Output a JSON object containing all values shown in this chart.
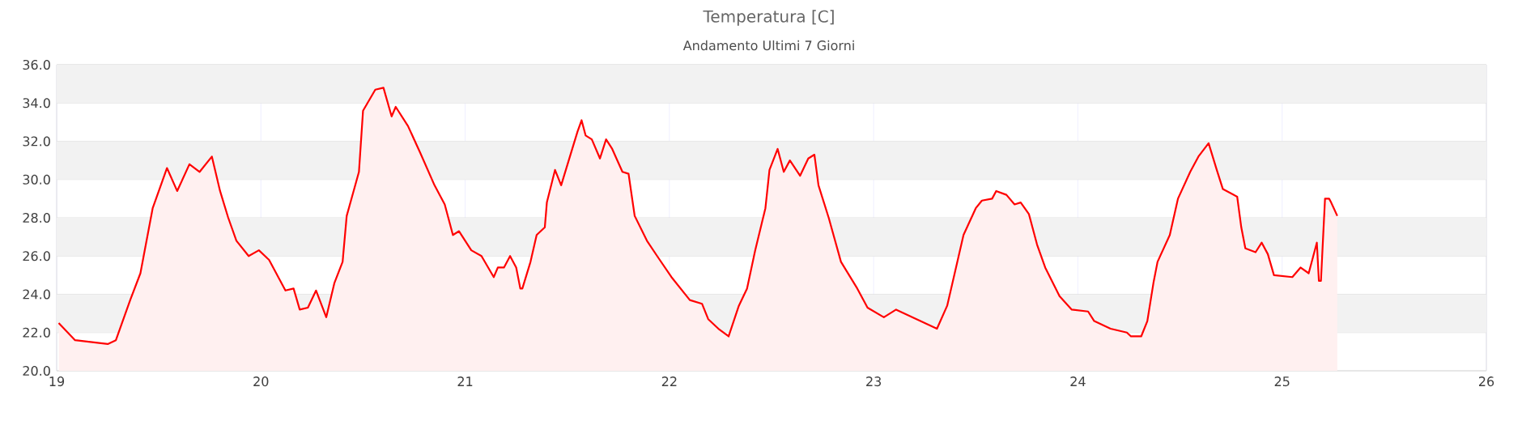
{
  "chart_data": {
    "type": "area",
    "title": "Temperatura [C]",
    "subtitle": "Andamento Ultimi 7 Giorni",
    "x": [
      19.01,
      19.09,
      19.25,
      19.29,
      19.36,
      19.41,
      19.47,
      19.54,
      19.59,
      19.65,
      19.7,
      19.76,
      19.8,
      19.84,
      19.88,
      19.94,
      19.99,
      20.04,
      20.12,
      20.16,
      20.19,
      20.23,
      20.27,
      20.32,
      20.36,
      20.4,
      20.42,
      20.48,
      20.5,
      20.56,
      20.6,
      20.64,
      20.66,
      20.72,
      20.78,
      20.85,
      20.9,
      20.94,
      20.97,
      21.03,
      21.08,
      21.14,
      21.16,
      21.19,
      21.22,
      21.25,
      21.27,
      21.28,
      21.32,
      21.35,
      21.39,
      21.4,
      21.44,
      21.47,
      21.51,
      21.55,
      21.57,
      21.59,
      21.62,
      21.66,
      21.69,
      21.72,
      21.77,
      21.8,
      21.83,
      21.89,
      21.94,
      22.01,
      22.1,
      22.16,
      22.19,
      22.24,
      22.29,
      22.34,
      22.38,
      22.42,
      22.47,
      22.49,
      22.53,
      22.56,
      22.59,
      22.64,
      22.68,
      22.71,
      22.73,
      22.78,
      22.84,
      22.92,
      22.97,
      23.05,
      23.11,
      23.21,
      23.31,
      23.36,
      23.44,
      23.5,
      23.53,
      23.58,
      23.6,
      23.65,
      23.69,
      23.72,
      23.76,
      23.8,
      23.84,
      23.91,
      23.97,
      24.05,
      24.08,
      24.16,
      24.24,
      24.26,
      24.31,
      24.34,
      24.37,
      24.39,
      24.45,
      24.49,
      24.55,
      24.59,
      24.64,
      24.68,
      24.71,
      24.78,
      24.8,
      24.82,
      24.87,
      24.9,
      24.93,
      24.96,
      25.05,
      25.09,
      25.13,
      25.17,
      25.18,
      25.19,
      25.21,
      25.23,
      25.24,
      25.27
    ],
    "series": [
      {
        "color": "#ff0000",
        "values": [
          22.5,
          21.6,
          21.4,
          21.6,
          23.7,
          25.1,
          28.5,
          30.6,
          29.4,
          30.8,
          30.4,
          31.2,
          29.4,
          28.0,
          26.8,
          26.0,
          26.3,
          25.8,
          24.2,
          24.3,
          23.2,
          23.3,
          24.2,
          22.8,
          24.6,
          25.7,
          28.1,
          30.4,
          33.6,
          34.7,
          34.8,
          33.3,
          33.8,
          32.8,
          31.4,
          29.7,
          28.7,
          27.1,
          27.3,
          26.3,
          26.0,
          24.9,
          25.4,
          25.4,
          26.0,
          25.4,
          24.3,
          24.3,
          25.7,
          27.1,
          27.5,
          28.8,
          30.5,
          29.7,
          31.1,
          32.5,
          33.1,
          32.3,
          32.1,
          31.1,
          32.1,
          31.6,
          30.4,
          30.3,
          28.1,
          26.8,
          26.0,
          24.9,
          23.7,
          23.5,
          22.7,
          22.2,
          21.8,
          23.4,
          24.3,
          26.3,
          28.5,
          30.5,
          31.6,
          30.4,
          31.0,
          30.2,
          31.1,
          31.3,
          29.7,
          28.0,
          25.7,
          24.3,
          23.3,
          22.8,
          23.2,
          22.7,
          22.2,
          23.4,
          27.1,
          28.5,
          28.9,
          29.0,
          29.4,
          29.2,
          28.7,
          28.8,
          28.2,
          26.6,
          25.4,
          23.9,
          23.2,
          23.1,
          22.6,
          22.2,
          22.0,
          21.8,
          21.8,
          22.6,
          24.6,
          25.7,
          27.1,
          29.0,
          30.4,
          31.2,
          31.9,
          30.5,
          29.5,
          29.1,
          27.5,
          26.4,
          26.2,
          26.7,
          26.1,
          25.0,
          24.9,
          25.4,
          25.1,
          26.7,
          24.7,
          24.7,
          29.0,
          29.0,
          28.8,
          28.1
        ]
      }
    ],
    "xlim": [
      19,
      26
    ],
    "ylim": [
      20,
      36
    ],
    "xticks": [
      19,
      20,
      21,
      22,
      23,
      24,
      25,
      26
    ],
    "yticks": [
      {
        "value": 20,
        "label": "20.0"
      },
      {
        "value": 22,
        "label": "22.0"
      },
      {
        "value": 24,
        "label": "24.0"
      },
      {
        "value": 26,
        "label": "26.0"
      },
      {
        "value": 28,
        "label": "28.0"
      },
      {
        "value": 30,
        "label": "30.0"
      },
      {
        "value": 32,
        "label": "32.0"
      },
      {
        "value": 34,
        "label": "34.0"
      },
      {
        "value": 36,
        "label": "36.0"
      }
    ],
    "grid": true
  }
}
